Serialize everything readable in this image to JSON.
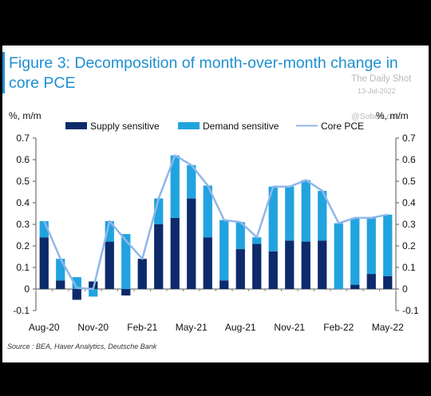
{
  "title": "Figure 3: Decomposition of month-over-month change in core PCE",
  "watermark": {
    "name": "The Daily Shot",
    "date": "13-Jul-2022",
    "handle": "@SoberLook"
  },
  "source": "Source : BEA, Haver Analytics, Deutsche Bank",
  "colors": {
    "supply": "#0d2a6b",
    "demand": "#21a3e0",
    "core_pce": "#8fb7e8",
    "title": "#1e8fd0"
  },
  "chart_data": {
    "type": "bar",
    "stacked": true,
    "y_unit_left": "%, m/m",
    "y_unit_right": "%, m/m",
    "ylim": [
      -0.1,
      0.7
    ],
    "yticks": [
      -0.1,
      0,
      0.1,
      0.2,
      0.3,
      0.4,
      0.5,
      0.6,
      0.7
    ],
    "ytick_labels": [
      "-0.1",
      "0",
      "0.1",
      "0.2",
      "0.3",
      "0.4",
      "0.5",
      "0.6",
      "0.7"
    ],
    "grid": false,
    "legend_position": "top",
    "categories": [
      "Aug-20",
      "Sep-20",
      "Oct-20",
      "Nov-20",
      "Dec-20",
      "Jan-21",
      "Feb-21",
      "Mar-21",
      "Apr-21",
      "May-21",
      "Jun-21",
      "Jul-21",
      "Aug-21",
      "Sep-21",
      "Oct-21",
      "Nov-21",
      "Dec-21",
      "Jan-22",
      "Feb-22",
      "Mar-22",
      "Apr-22",
      "May-22"
    ],
    "x_tick_labels": [
      {
        "index": 0,
        "label": "Aug-20"
      },
      {
        "index": 3,
        "label": "Nov-20"
      },
      {
        "index": 6,
        "label": "Feb-21"
      },
      {
        "index": 9,
        "label": "May-21"
      },
      {
        "index": 12,
        "label": "Aug-21"
      },
      {
        "index": 15,
        "label": "Nov-21"
      },
      {
        "index": 18,
        "label": "Feb-22"
      },
      {
        "index": 21,
        "label": "May-22"
      }
    ],
    "series": [
      {
        "name": "Supply sensitive",
        "kind": "bar",
        "values": [
          0.24,
          0.04,
          -0.05,
          0.035,
          0.22,
          -0.03,
          0.14,
          0.3,
          0.33,
          0.42,
          0.24,
          0.04,
          0.185,
          0.21,
          0.175,
          0.225,
          0.22,
          0.225,
          0.0,
          0.02,
          0.07,
          0.06
        ]
      },
      {
        "name": "Demand sensitive",
        "kind": "bar",
        "values": [
          0.075,
          0.1,
          0.055,
          -0.035,
          0.095,
          0.255,
          0.0,
          0.12,
          0.29,
          0.155,
          0.24,
          0.28,
          0.125,
          0.03,
          0.3,
          0.25,
          0.285,
          0.23,
          0.305,
          0.31,
          0.26,
          0.285
        ]
      },
      {
        "name": "Core PCE",
        "kind": "line",
        "values": [
          0.315,
          0.14,
          0.005,
          0.0,
          0.315,
          0.225,
          0.14,
          0.42,
          0.62,
          0.575,
          0.48,
          0.32,
          0.31,
          0.24,
          0.475,
          0.475,
          0.505,
          0.455,
          0.305,
          0.33,
          0.33,
          0.345
        ]
      }
    ]
  }
}
